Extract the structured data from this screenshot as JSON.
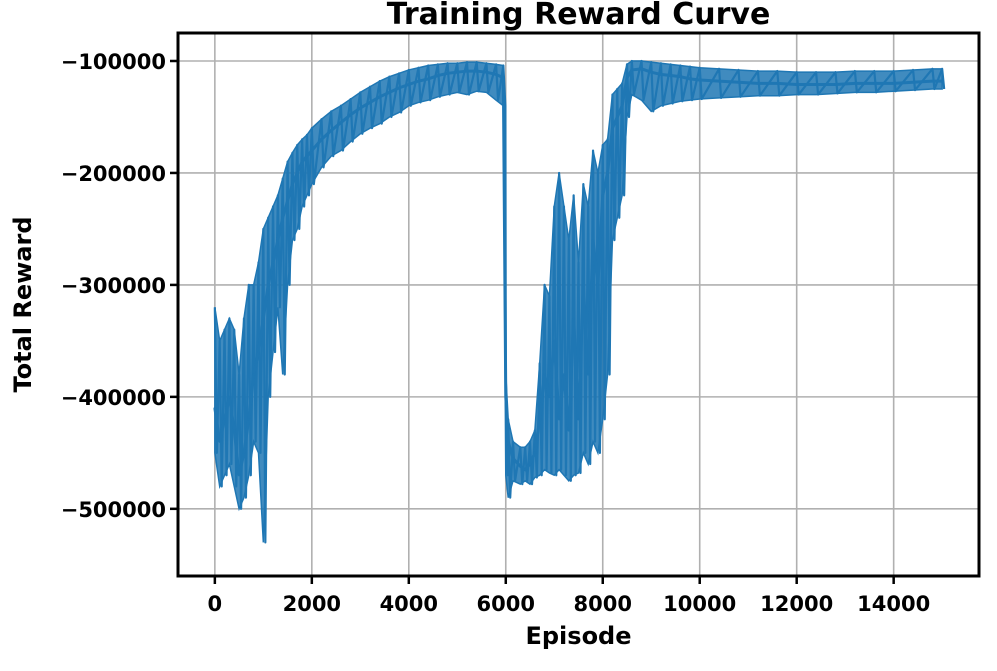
{
  "chart_data": {
    "type": "line",
    "title": "Training Reward Curve",
    "xlabel": "Episode",
    "ylabel": "Total Reward",
    "xlim": [
      -760,
      15760
    ],
    "ylim": [
      -560000,
      -75000
    ],
    "xticks": [
      0,
      2000,
      4000,
      6000,
      8000,
      10000,
      12000,
      14000
    ],
    "xtick_labels": [
      "0",
      "2000",
      "4000",
      "6000",
      "8000",
      "10000",
      "12000",
      "14000"
    ],
    "yticks": [
      -500000,
      -400000,
      -300000,
      -200000,
      -100000
    ],
    "ytick_labels": [
      "−500000",
      "−400000",
      "−300000",
      "−200000",
      "−100000"
    ],
    "grid": true,
    "line_color": "#1f77b4",
    "series": [
      {
        "values_note": "",
        "x": [
          0,
          100,
          200,
          300,
          400,
          500,
          600,
          700,
          800,
          900,
          1000,
          1100,
          1200,
          1300,
          1400,
          1500,
          1600,
          1700,
          1800,
          1900,
          2000,
          2200,
          2400,
          2600,
          2800,
          3000,
          3200,
          3400,
          3600,
          3800,
          4000,
          4200,
          4400,
          4600,
          4800,
          5000,
          5200,
          5400,
          5600,
          5800,
          5950,
          6000,
          6050,
          6150,
          6300,
          6400,
          6500,
          6600,
          6700,
          6800,
          6900,
          7000,
          7100,
          7200,
          7300,
          7400,
          7500,
          7600,
          7700,
          7800,
          7900,
          8000,
          8100,
          8200,
          8300,
          8400,
          8500,
          8600,
          8800,
          9000,
          9200,
          9400,
          9600,
          9800,
          10000,
          10400,
          10800,
          11200,
          11600,
          12000,
          12400,
          12800,
          13200,
          13600,
          14000,
          14400,
          14800,
          15000
        ],
        "y": [
          -410000,
          -440000,
          -420000,
          -400000,
          -430000,
          -470000,
          -450000,
          -420000,
          -380000,
          -360000,
          -330000,
          -300000,
          -280000,
          -260000,
          -240000,
          -225000,
          -210000,
          -200000,
          -190000,
          -185000,
          -180000,
          -170000,
          -162000,
          -155000,
          -148000,
          -142000,
          -137000,
          -132000,
          -128000,
          -124000,
          -121000,
          -118000,
          -116000,
          -113000,
          -111000,
          -110000,
          -109000,
          -109000,
          -110000,
          -112000,
          -115000,
          -400000,
          -440000,
          -455000,
          -462000,
          -465000,
          -460000,
          -450000,
          -420000,
          -380000,
          -400000,
          -350000,
          -420000,
          -380000,
          -430000,
          -330000,
          -420000,
          -300000,
          -380000,
          -260000,
          -300000,
          -220000,
          -200000,
          -160000,
          -150000,
          -140000,
          -115000,
          -108000,
          -107000,
          -110000,
          -112000,
          -113000,
          -114000,
          -116000,
          -117000,
          -118000,
          -119000,
          -120000,
          -120000,
          -121000,
          -121000,
          -121000,
          -120000,
          -120000,
          -120000,
          -119000,
          -118000,
          -118000
        ],
        "y_min": [
          -450000,
          -480000,
          -470000,
          -460000,
          -480000,
          -500000,
          -490000,
          -470000,
          -440000,
          -450000,
          -530000,
          -400000,
          -360000,
          -320000,
          -380000,
          -300000,
          -260000,
          -250000,
          -230000,
          -220000,
          -210000,
          -195000,
          -185000,
          -180000,
          -172000,
          -165000,
          -160000,
          -156000,
          -150000,
          -146000,
          -140000,
          -137000,
          -135000,
          -132000,
          -130000,
          -128000,
          -130000,
          -127000,
          -128000,
          -135000,
          -140000,
          -470000,
          -490000,
          -475000,
          -478000,
          -475000,
          -478000,
          -472000,
          -470000,
          -465000,
          -468000,
          -470000,
          -465000,
          -470000,
          -475000,
          -470000,
          -468000,
          -450000,
          -460000,
          -440000,
          -450000,
          -420000,
          -380000,
          -260000,
          -240000,
          -220000,
          -150000,
          -130000,
          -135000,
          -145000,
          -140000,
          -138000,
          -136000,
          -135000,
          -134000,
          -133000,
          -132000,
          -131000,
          -131000,
          -130000,
          -130000,
          -129000,
          -128000,
          -128000,
          -127000,
          -126000,
          -125000,
          -125000
        ],
        "y_max": [
          -320000,
          -350000,
          -340000,
          -330000,
          -340000,
          -380000,
          -330000,
          -300000,
          -300000,
          -280000,
          -250000,
          -240000,
          -230000,
          -220000,
          -205000,
          -190000,
          -182000,
          -175000,
          -170000,
          -166000,
          -160000,
          -152000,
          -145000,
          -140000,
          -134000,
          -128000,
          -123000,
          -118000,
          -114000,
          -111000,
          -108000,
          -106000,
          -104000,
          -103000,
          -102000,
          -102000,
          -101000,
          -101000,
          -102000,
          -103000,
          -104000,
          -380000,
          -420000,
          -440000,
          -445000,
          -445000,
          -440000,
          -430000,
          -370000,
          -300000,
          -310000,
          -230000,
          -200000,
          -230000,
          -260000,
          -220000,
          -280000,
          -210000,
          -230000,
          -180000,
          -200000,
          -175000,
          -170000,
          -130000,
          -125000,
          -120000,
          -103000,
          -100000,
          -100000,
          -101000,
          -102000,
          -103000,
          -104000,
          -105000,
          -106000,
          -107000,
          -108000,
          -109000,
          -109000,
          -110000,
          -110000,
          -110000,
          -109000,
          -109000,
          -109000,
          -108000,
          -107000,
          -107000
        ]
      }
    ]
  }
}
